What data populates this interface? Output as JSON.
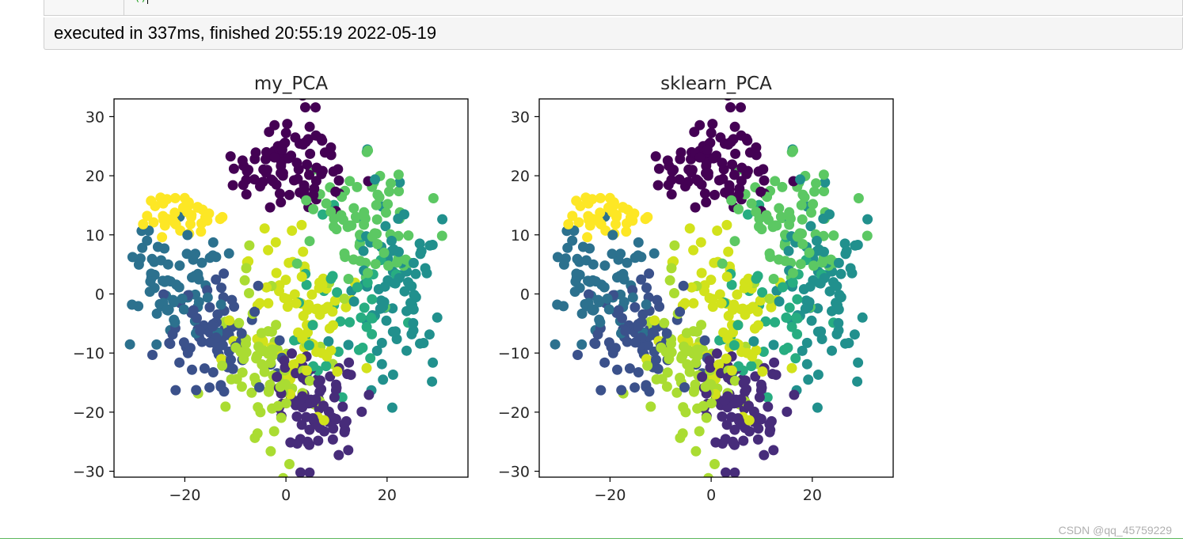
{
  "exec_info": {
    "text": "executed in 337ms, finished 20:55:19 2022-05-19"
  },
  "code_fragment": {
    "paren": "()"
  },
  "watermark": "CSDN @qq_45759229",
  "colors": {
    "viridis": [
      "#440154",
      "#472c7a",
      "#3b518b",
      "#2c718e",
      "#21908d",
      "#27ad81",
      "#5cc863",
      "#aadc32",
      "#d2e21b",
      "#fde725"
    ],
    "axis": "#000000",
    "cell_border": "#cfcfcf",
    "accent_line": "#5cb85c"
  },
  "chart_data": [
    {
      "type": "scatter",
      "title": "my_PCA",
      "xlabel": "",
      "ylabel": "",
      "xlim": [
        -34,
        36
      ],
      "ylim": [
        -31,
        33
      ],
      "xticks": [
        -20,
        0,
        20
      ],
      "xtick_labels": [
        "−20",
        "0",
        "20"
      ],
      "yticks": [
        30,
        20,
        10,
        0,
        -10,
        -20,
        -30
      ],
      "ytick_labels": [
        "30",
        "20",
        "10",
        "0",
        "−10",
        "−20",
        "−30"
      ],
      "grid": false,
      "legend": "none",
      "mirror": false,
      "clusters": [
        {
          "label": 0,
          "center": [
            1,
            22
          ],
          "spread": [
            5.5,
            4
          ],
          "count": 90
        },
        {
          "label": 1,
          "center": [
            6,
            -18
          ],
          "spread": [
            4.5,
            6
          ],
          "count": 80
        },
        {
          "label": 2,
          "center": [
            -14,
            -7
          ],
          "spread": [
            5,
            4
          ],
          "count": 80
        },
        {
          "label": 3,
          "center": [
            -21,
            2
          ],
          "spread": [
            5,
            5
          ],
          "count": 75
        },
        {
          "label": 4,
          "center": [
            21,
            0
          ],
          "spread": [
            5,
            7
          ],
          "count": 85
        },
        {
          "label": 5,
          "center": [
            12,
            -3
          ],
          "spread": [
            6,
            6
          ],
          "count": 40
        },
        {
          "label": 6,
          "center": [
            15,
            12
          ],
          "spread": [
            5,
            6
          ],
          "count": 75
        },
        {
          "label": 7,
          "center": [
            -4,
            -12
          ],
          "spread": [
            5,
            7
          ],
          "count": 80
        },
        {
          "label": 8,
          "center": [
            2,
            -3
          ],
          "spread": [
            6,
            7
          ],
          "count": 80
        },
        {
          "label": 9,
          "center": [
            -20,
            13
          ],
          "spread": [
            4,
            2
          ],
          "count": 40
        }
      ]
    },
    {
      "type": "scatter",
      "title": "sklearn_PCA",
      "xlabel": "",
      "ylabel": "",
      "xlim": [
        -34,
        36
      ],
      "ylim": [
        -31,
        33
      ],
      "xticks": [
        -20,
        0,
        20
      ],
      "xtick_labels": [
        "−20",
        "0",
        "20"
      ],
      "yticks": [
        30,
        20,
        10,
        0,
        -10,
        -20,
        -30
      ],
      "ytick_labels": [
        "30",
        "20",
        "10",
        "0",
        "−10",
        "−20",
        "−30"
      ],
      "grid": false,
      "legend": "none",
      "mirror": true,
      "clusters": [
        {
          "label": 0,
          "center": [
            1,
            22
          ],
          "spread": [
            5.5,
            4
          ],
          "count": 90
        },
        {
          "label": 1,
          "center": [
            6,
            -18
          ],
          "spread": [
            4.5,
            6
          ],
          "count": 80
        },
        {
          "label": 2,
          "center": [
            -14,
            -7
          ],
          "spread": [
            5,
            4
          ],
          "count": 80
        },
        {
          "label": 3,
          "center": [
            -21,
            2
          ],
          "spread": [
            5,
            5
          ],
          "count": 75
        },
        {
          "label": 4,
          "center": [
            21,
            0
          ],
          "spread": [
            5,
            7
          ],
          "count": 85
        },
        {
          "label": 5,
          "center": [
            12,
            -3
          ],
          "spread": [
            6,
            6
          ],
          "count": 40
        },
        {
          "label": 6,
          "center": [
            15,
            12
          ],
          "spread": [
            5,
            6
          ],
          "count": 75
        },
        {
          "label": 7,
          "center": [
            -4,
            -12
          ],
          "spread": [
            5,
            7
          ],
          "count": 80
        },
        {
          "label": 8,
          "center": [
            2,
            -3
          ],
          "spread": [
            6,
            7
          ],
          "count": 80
        },
        {
          "label": 9,
          "center": [
            -20,
            13
          ],
          "spread": [
            4,
            2
          ],
          "count": 40
        }
      ]
    }
  ]
}
